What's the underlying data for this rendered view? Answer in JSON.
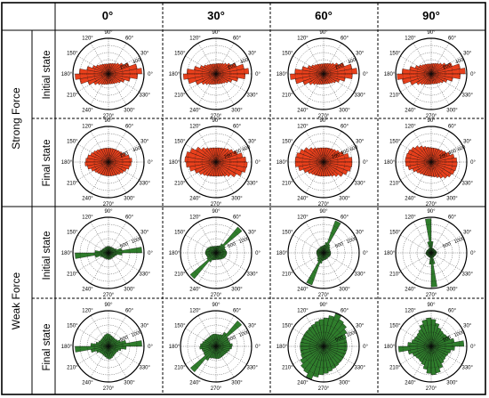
{
  "columns": [
    {
      "label": "0°"
    },
    {
      "label": "30°"
    },
    {
      "label": "60°"
    },
    {
      "label": "90°"
    }
  ],
  "groups": [
    {
      "label": "Strong Force",
      "color": "#e8401c"
    },
    {
      "label": "Weak Force",
      "color": "#2f7d2c"
    }
  ],
  "states": [
    "Initial state",
    "Final  state"
  ],
  "angle_labels": [
    "0°",
    "30°",
    "60°",
    "90°",
    "120°",
    "150°",
    "180°",
    "210°",
    "240°",
    "270°",
    "300°",
    "330°"
  ],
  "chart_data": {
    "type": "polar-rose",
    "radial_max": 500,
    "rings": [
      100,
      200,
      300,
      400,
      500
    ],
    "bins_per_half": 18,
    "panels": [
      {
        "group": "Strong Force",
        "state": "Initial state",
        "column": "0°",
        "radial_ticks": [
          "200",
          "400"
        ],
        "half_profile": [
          470,
          410,
          310,
          240,
          200,
          175,
          160,
          150,
          145,
          140,
          145,
          150,
          160,
          175,
          200,
          240,
          310,
          410
        ]
      },
      {
        "group": "Strong Force",
        "state": "Initial state",
        "column": "30°",
        "radial_ticks": [
          "200",
          "400"
        ],
        "half_profile": [
          460,
          400,
          305,
          235,
          200,
          175,
          160,
          150,
          145,
          140,
          145,
          150,
          160,
          175,
          200,
          240,
          315,
          410
        ]
      },
      {
        "group": "Strong Force",
        "state": "Initial state",
        "column": "60°",
        "radial_ticks": [
          "200",
          "400"
        ],
        "half_profile": [
          470,
          405,
          310,
          240,
          200,
          175,
          160,
          150,
          145,
          142,
          145,
          150,
          160,
          175,
          200,
          240,
          310,
          405
        ]
      },
      {
        "group": "Strong Force",
        "state": "Initial state",
        "column": "90°",
        "radial_ticks": [
          "200",
          "400"
        ],
        "half_profile": [
          480,
          415,
          315,
          240,
          200,
          175,
          160,
          150,
          145,
          140,
          145,
          150,
          160,
          175,
          200,
          240,
          310,
          410
        ]
      },
      {
        "group": "Strong Force",
        "state": "Final  state",
        "column": "0°",
        "radial_ticks": [
          "200",
          "400"
        ],
        "half_profile": [
          330,
          300,
          260,
          230,
          215,
          205,
          200,
          195,
          195,
          195,
          200,
          205,
          215,
          230,
          250,
          270,
          300,
          320
        ]
      },
      {
        "group": "Strong Force",
        "state": "Final  state",
        "column": "30°",
        "radial_ticks": [
          "200",
          "400",
          "600"
        ],
        "half_profile": [
          420,
          380,
          320,
          280,
          250,
          230,
          215,
          205,
          200,
          200,
          205,
          215,
          235,
          270,
          330,
          390,
          430,
          440
        ]
      },
      {
        "group": "Strong Force",
        "state": "Final  state",
        "column": "60°",
        "radial_ticks": [
          "200",
          "400",
          "600"
        ],
        "half_profile": [
          400,
          360,
          300,
          260,
          235,
          220,
          210,
          205,
          200,
          200,
          205,
          215,
          235,
          270,
          320,
          360,
          390,
          400
        ]
      },
      {
        "group": "Strong Force",
        "state": "Final  state",
        "column": "90°",
        "radial_ticks": [
          "200",
          "400",
          "600"
        ],
        "half_profile": [
          360,
          330,
          280,
          245,
          225,
          210,
          205,
          200,
          200,
          205,
          215,
          235,
          265,
          300,
          330,
          350,
          360,
          365
        ]
      },
      {
        "group": "Weak Force",
        "state": "Initial state",
        "column": "0°",
        "radial_ticks": [
          "500",
          "1000"
        ],
        "half_profile": [
          470,
          190,
          120,
          100,
          95,
          90,
          88,
          88,
          90,
          92,
          90,
          88,
          88,
          90,
          95,
          100,
          120,
          190
        ]
      },
      {
        "group": "Weak Force",
        "state": "Initial state",
        "column": "30°",
        "radial_ticks": [
          "500",
          "1000"
        ],
        "half_profile": [
          150,
          140,
          135,
          150,
          475,
          150,
          110,
          100,
          95,
          92,
          95,
          100,
          110,
          120,
          130,
          140,
          145,
          150
        ]
      },
      {
        "group": "Weak Force",
        "state": "Initial state",
        "column": "60°",
        "radial_ticks": [
          "500",
          "1000"
        ],
        "half_profile": [
          100,
          95,
          95,
          100,
          120,
          140,
          480,
          150,
          110,
          100,
          95,
          92,
          90,
          90,
          92,
          95,
          100,
          100
        ]
      },
      {
        "group": "Weak Force",
        "state": "Initial state",
        "column": "90°",
        "radial_ticks": [
          "500",
          "1000"
        ],
        "half_profile": [
          80,
          75,
          70,
          68,
          66,
          66,
          66,
          70,
          160,
          480,
          160,
          70,
          66,
          66,
          66,
          68,
          70,
          75
        ]
      },
      {
        "group": "Weak Force",
        "state": "Final  state",
        "column": "0°",
        "radial_ticks": [
          "500",
          "1000"
        ],
        "half_profile": [
          470,
          250,
          180,
          150,
          140,
          140,
          145,
          155,
          170,
          180,
          170,
          155,
          145,
          140,
          140,
          150,
          180,
          250
        ]
      },
      {
        "group": "Weak Force",
        "state": "Final  state",
        "column": "30°",
        "radial_ticks": [
          "500",
          "1000"
        ],
        "half_profile": [
          230,
          200,
          190,
          200,
          470,
          230,
          180,
          170,
          170,
          175,
          175,
          170,
          165,
          165,
          170,
          180,
          195,
          220
        ]
      },
      {
        "group": "Weak Force",
        "state": "Final  state",
        "column": "60°",
        "radial_ticks": [
          "500",
          "1000"
        ],
        "half_profile": [
          330,
          330,
          340,
          380,
          420,
          440,
          490,
          440,
          400,
          380,
          360,
          340,
          330,
          320,
          320,
          320,
          325,
          330
        ]
      },
      {
        "group": "Weak Force",
        "state": "Final  state",
        "column": "90°",
        "radial_ticks": [
          "500",
          "1000"
        ],
        "half_profile": [
          460,
          330,
          280,
          260,
          250,
          260,
          280,
          330,
          380,
          400,
          380,
          330,
          280,
          260,
          250,
          260,
          280,
          330
        ]
      }
    ]
  }
}
